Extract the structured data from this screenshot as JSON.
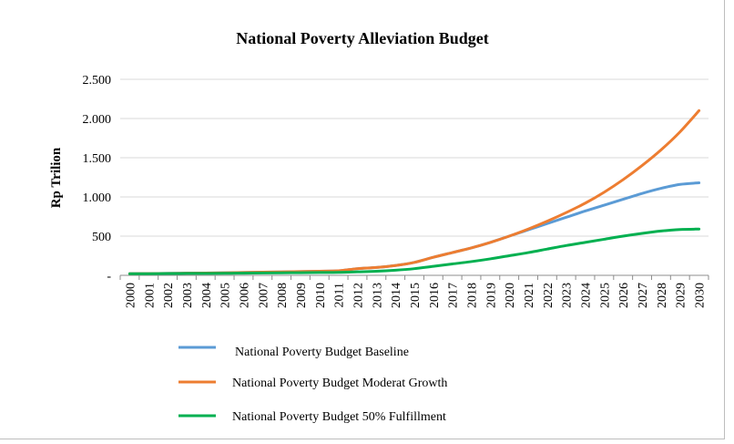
{
  "chart_data": {
    "type": "line",
    "title": "National Poverty Alleviation Budget",
    "xlabel": "",
    "ylabel": "Rp Trilion",
    "ylim": [
      0,
      2500
    ],
    "y_ticks": [
      {
        "value": 0,
        "label": "-"
      },
      {
        "value": 500,
        "label": "500"
      },
      {
        "value": 1000,
        "label": "1.000"
      },
      {
        "value": 1500,
        "label": "1.500"
      },
      {
        "value": 2000,
        "label": "2.000"
      },
      {
        "value": 2500,
        "label": "2.500"
      }
    ],
    "grid": "horizontal",
    "legend_position": "bottom",
    "x": [
      "2000",
      "2001",
      "2002",
      "2003",
      "2004",
      "2005",
      "2006",
      "2007",
      "2008",
      "2009",
      "2010",
      "2011",
      "2012",
      "2013",
      "2014",
      "2015",
      "2016",
      "2017",
      "2018",
      "2019",
      "2020",
      "2021",
      "2022",
      "2023",
      "2024",
      "2025",
      "2026",
      "2027",
      "2028",
      "2029",
      "2030"
    ],
    "series": [
      {
        "name": "National Poverty Budget Baseline",
        "color": "#5b9bd5",
        "values": [
          20,
          22,
          25,
          27,
          29,
          32,
          36,
          40,
          44,
          48,
          53,
          58,
          85,
          100,
          125,
          165,
          230,
          290,
          350,
          420,
          500,
          580,
          660,
          740,
          820,
          895,
          970,
          1045,
          1110,
          1160,
          1180
        ]
      },
      {
        "name": "National Poverty Budget Moderat Growth",
        "color": "#ed7d31",
        "values": [
          20,
          22,
          25,
          27,
          29,
          32,
          36,
          40,
          44,
          48,
          53,
          58,
          85,
          100,
          125,
          165,
          230,
          290,
          350,
          420,
          500,
          590,
          690,
          800,
          920,
          1060,
          1220,
          1400,
          1600,
          1830,
          2100
        ]
      },
      {
        "name": "National Poverty Budget 50% Fulfillment",
        "color": "#00b050",
        "values": [
          20,
          21,
          23,
          24,
          25,
          26,
          28,
          30,
          32,
          34,
          36,
          38,
          45,
          52,
          65,
          85,
          115,
          145,
          175,
          210,
          250,
          290,
          335,
          380,
          420,
          460,
          500,
          535,
          565,
          585,
          590
        ]
      }
    ]
  }
}
